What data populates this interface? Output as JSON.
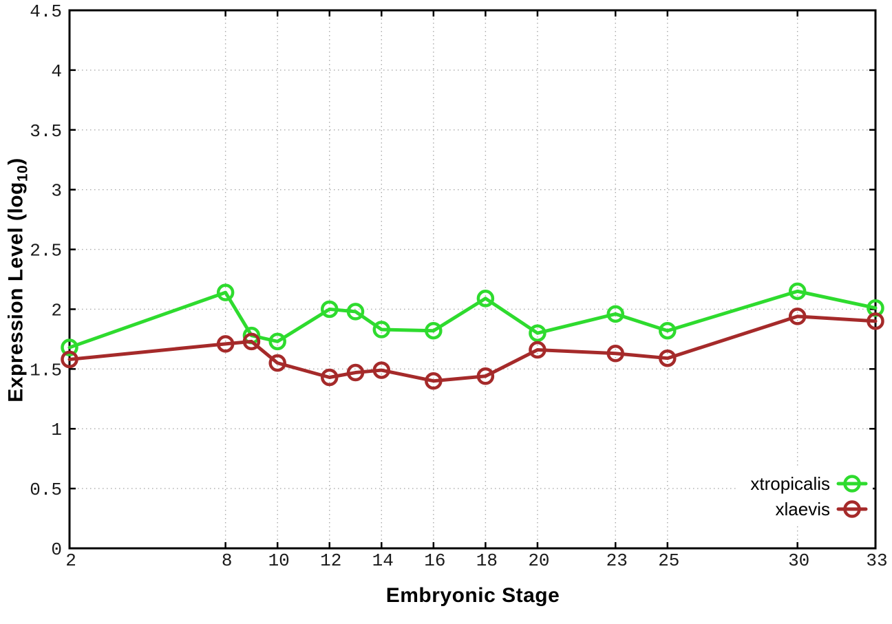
{
  "chart_data": {
    "type": "line",
    "title": "",
    "xlabel": "Embryonic Stage",
    "ylabel": {
      "text": "Expression Level (log",
      "sub": "10",
      "suffix": ")"
    },
    "xlim": [
      2,
      33
    ],
    "ylim": [
      0,
      4.5
    ],
    "grid": true,
    "legend_position": "inside-bottom-right",
    "x_ticks": [
      {
        "v": 2,
        "label": "2"
      },
      {
        "v": 8,
        "label": "8"
      },
      {
        "v": 10,
        "label": "10"
      },
      {
        "v": 12,
        "label": "12"
      },
      {
        "v": 14,
        "label": "14"
      },
      {
        "v": 16,
        "label": "16"
      },
      {
        "v": 18,
        "label": "18"
      },
      {
        "v": 20,
        "label": "20"
      },
      {
        "v": 23,
        "label": "23"
      },
      {
        "v": 25,
        "label": "25"
      },
      {
        "v": 30,
        "label": "30"
      },
      {
        "v": 33,
        "label": "33"
      }
    ],
    "y_ticks": [
      {
        "v": 0,
        "label": "0"
      },
      {
        "v": 0.5,
        "label": "0.5"
      },
      {
        "v": 1,
        "label": "1"
      },
      {
        "v": 1.5,
        "label": "1.5"
      },
      {
        "v": 2,
        "label": "2"
      },
      {
        "v": 2.5,
        "label": "2.5"
      },
      {
        "v": 3,
        "label": "3"
      },
      {
        "v": 3.5,
        "label": "3.5"
      },
      {
        "v": 4,
        "label": "4"
      },
      {
        "v": 4.5,
        "label": "4.5"
      }
    ],
    "series": [
      {
        "name": "xtropicalis",
        "color": "#2edb2e",
        "x": [
          2,
          8,
          9,
          10,
          12,
          13,
          14,
          16,
          18,
          20,
          23,
          25,
          30,
          33
        ],
        "values": [
          1.68,
          2.14,
          1.78,
          1.73,
          2.0,
          1.98,
          1.83,
          1.82,
          2.09,
          1.8,
          1.96,
          1.82,
          2.15,
          2.01
        ]
      },
      {
        "name": "xlaevis",
        "color": "#a52a2a",
        "x": [
          2,
          8,
          9,
          10,
          12,
          13,
          14,
          16,
          18,
          20,
          23,
          25,
          30,
          33
        ],
        "values": [
          1.58,
          1.71,
          1.73,
          1.55,
          1.43,
          1.47,
          1.49,
          1.4,
          1.44,
          1.66,
          1.63,
          1.59,
          1.94,
          1.9
        ]
      }
    ],
    "colors": {
      "grid": "#aaaaaa",
      "axis": "#000000",
      "tick_text": "#1a1a1a",
      "background": "#ffffff"
    }
  }
}
